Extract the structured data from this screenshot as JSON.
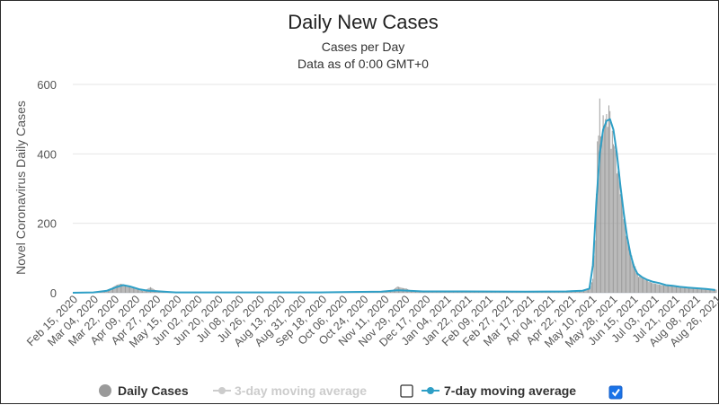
{
  "chart_data": {
    "type": "bar",
    "title": "Daily New Cases",
    "subtitle_line1": "Cases per Day",
    "subtitle_line2": "Data as of 0:00 GMT+0",
    "ylabel": "Novel Coronavirus Daily Cases",
    "xlabel": "",
    "ylim": [
      0,
      600
    ],
    "yticks": [
      "0",
      "200",
      "400",
      "600"
    ],
    "xlim": [
      "2020-02-15",
      "2021-08-31"
    ],
    "x_tick_labels": [
      "Feb 15, 2020",
      "Mar 04, 2020",
      "Mar 22, 2020",
      "Apr 09, 2020",
      "Apr 27, 2020",
      "May 15, 2020",
      "Jun 02, 2020",
      "Jun 20, 2020",
      "Jul 08, 2020",
      "Jul 26, 2020",
      "Aug 13, 2020",
      "Aug 31, 2020",
      "Sep 18, 2020",
      "Oct 06, 2020",
      "Oct 24, 2020",
      "Nov 11, 2020",
      "Nov 29, 2020",
      "Dec 17, 2020",
      "Jan 04, 2021",
      "Jan 22, 2021",
      "Feb 09, 2021",
      "Feb 27, 2021",
      "Mar 17, 2021",
      "Apr 04, 2021",
      "Apr 22, 2021",
      "May 10, 2021",
      "May 28, 2021",
      "Jun 15, 2021",
      "Jul 03, 2021",
      "Jul 21, 2021",
      "Aug 08, 2021",
      "Aug 26, 2021"
    ],
    "grid": true,
    "legend_placement": "bottom",
    "colors": {
      "bars": "#9a9a9a",
      "avg7": "#2e9fc6",
      "avg3_disabled": "#cccccc",
      "grid": "#e6e6e6"
    },
    "series": [
      {
        "name": "Daily Cases",
        "kind": "bar",
        "points": [
          [
            "2020-02-15",
            0
          ],
          [
            "2020-03-04",
            2
          ],
          [
            "2020-03-14",
            6
          ],
          [
            "2020-03-20",
            14
          ],
          [
            "2020-03-24",
            22
          ],
          [
            "2020-03-28",
            26
          ],
          [
            "2020-04-01",
            22
          ],
          [
            "2020-04-05",
            16
          ],
          [
            "2020-04-09",
            12
          ],
          [
            "2020-04-13",
            8
          ],
          [
            "2020-04-17",
            5
          ],
          [
            "2020-04-23",
            16
          ],
          [
            "2020-04-27",
            8
          ],
          [
            "2020-05-05",
            3
          ],
          [
            "2020-05-15",
            1
          ],
          [
            "2020-06-02",
            1
          ],
          [
            "2020-07-08",
            1
          ],
          [
            "2020-08-13",
            1
          ],
          [
            "2020-09-18",
            1
          ],
          [
            "2020-10-24",
            2
          ],
          [
            "2020-11-11",
            3
          ],
          [
            "2020-11-21",
            8
          ],
          [
            "2020-11-25",
            18
          ],
          [
            "2020-11-29",
            14
          ],
          [
            "2020-12-03",
            12
          ],
          [
            "2020-12-07",
            6
          ],
          [
            "2020-12-17",
            4
          ],
          [
            "2021-01-04",
            4
          ],
          [
            "2021-01-22",
            5
          ],
          [
            "2021-02-09",
            4
          ],
          [
            "2021-02-27",
            3
          ],
          [
            "2021-03-17",
            3
          ],
          [
            "2021-04-04",
            3
          ],
          [
            "2021-04-22",
            5
          ],
          [
            "2021-05-06",
            6
          ],
          [
            "2021-05-12",
            10
          ],
          [
            "2021-05-15",
            40
          ],
          [
            "2021-05-17",
            160
          ],
          [
            "2021-05-19",
            400
          ],
          [
            "2021-05-21",
            540
          ],
          [
            "2021-05-23",
            450
          ],
          [
            "2021-05-25",
            520
          ],
          [
            "2021-05-27",
            480
          ],
          [
            "2021-05-29",
            530
          ],
          [
            "2021-05-31",
            430
          ],
          [
            "2021-06-02",
            470
          ],
          [
            "2021-06-04",
            390
          ],
          [
            "2021-06-06",
            350
          ],
          [
            "2021-06-08",
            300
          ],
          [
            "2021-06-10",
            240
          ],
          [
            "2021-06-12",
            200
          ],
          [
            "2021-06-14",
            160
          ],
          [
            "2021-06-16",
            130
          ],
          [
            "2021-06-18",
            100
          ],
          [
            "2021-06-20",
            80
          ],
          [
            "2021-06-22",
            60
          ],
          [
            "2021-06-24",
            50
          ],
          [
            "2021-06-27",
            45
          ],
          [
            "2021-06-30",
            38
          ],
          [
            "2021-07-03",
            32
          ],
          [
            "2021-07-06",
            28
          ],
          [
            "2021-07-10",
            25
          ],
          [
            "2021-07-14",
            22
          ],
          [
            "2021-07-18",
            20
          ],
          [
            "2021-07-22",
            22
          ],
          [
            "2021-07-26",
            18
          ],
          [
            "2021-07-30",
            16
          ],
          [
            "2021-08-03",
            15
          ],
          [
            "2021-08-08",
            14
          ],
          [
            "2021-08-13",
            13
          ],
          [
            "2021-08-18",
            12
          ],
          [
            "2021-08-23",
            10
          ],
          [
            "2021-08-28",
            9
          ]
        ]
      },
      {
        "name": "3-day moving average",
        "kind": "line",
        "visible": false,
        "points": []
      },
      {
        "name": "7-day moving average",
        "kind": "line",
        "visible": true,
        "points": [
          [
            "2020-02-15",
            0
          ],
          [
            "2020-03-04",
            1
          ],
          [
            "2020-03-16",
            6
          ],
          [
            "2020-03-24",
            16
          ],
          [
            "2020-03-30",
            22
          ],
          [
            "2020-04-05",
            18
          ],
          [
            "2020-04-13",
            10
          ],
          [
            "2020-04-21",
            6
          ],
          [
            "2020-04-27",
            5
          ],
          [
            "2020-05-15",
            1
          ],
          [
            "2020-07-08",
            1
          ],
          [
            "2020-09-18",
            1
          ],
          [
            "2020-11-11",
            3
          ],
          [
            "2020-11-25",
            7
          ],
          [
            "2020-12-05",
            6
          ],
          [
            "2020-12-17",
            4
          ],
          [
            "2021-01-22",
            4
          ],
          [
            "2021-03-17",
            3
          ],
          [
            "2021-04-22",
            4
          ],
          [
            "2021-05-06",
            6
          ],
          [
            "2021-05-12",
            12
          ],
          [
            "2021-05-15",
            80
          ],
          [
            "2021-05-18",
            260
          ],
          [
            "2021-05-21",
            400
          ],
          [
            "2021-05-24",
            470
          ],
          [
            "2021-05-27",
            495
          ],
          [
            "2021-05-30",
            500
          ],
          [
            "2021-06-02",
            470
          ],
          [
            "2021-06-05",
            400
          ],
          [
            "2021-06-08",
            310
          ],
          [
            "2021-06-11",
            230
          ],
          [
            "2021-06-14",
            160
          ],
          [
            "2021-06-17",
            110
          ],
          [
            "2021-06-20",
            75
          ],
          [
            "2021-06-23",
            55
          ],
          [
            "2021-06-27",
            45
          ],
          [
            "2021-07-01",
            38
          ],
          [
            "2021-07-06",
            32
          ],
          [
            "2021-07-12",
            28
          ],
          [
            "2021-07-18",
            22
          ],
          [
            "2021-07-24",
            20
          ],
          [
            "2021-07-30",
            17
          ],
          [
            "2021-08-06",
            15
          ],
          [
            "2021-08-14",
            13
          ],
          [
            "2021-08-22",
            11
          ],
          [
            "2021-08-30",
            8
          ]
        ]
      }
    ]
  },
  "legend": {
    "daily_cases_label": "Daily Cases",
    "avg3_label": "3-day moving average",
    "avg7_label": "7-day moving average",
    "avg3_checked": false,
    "avg7_checked": true
  }
}
